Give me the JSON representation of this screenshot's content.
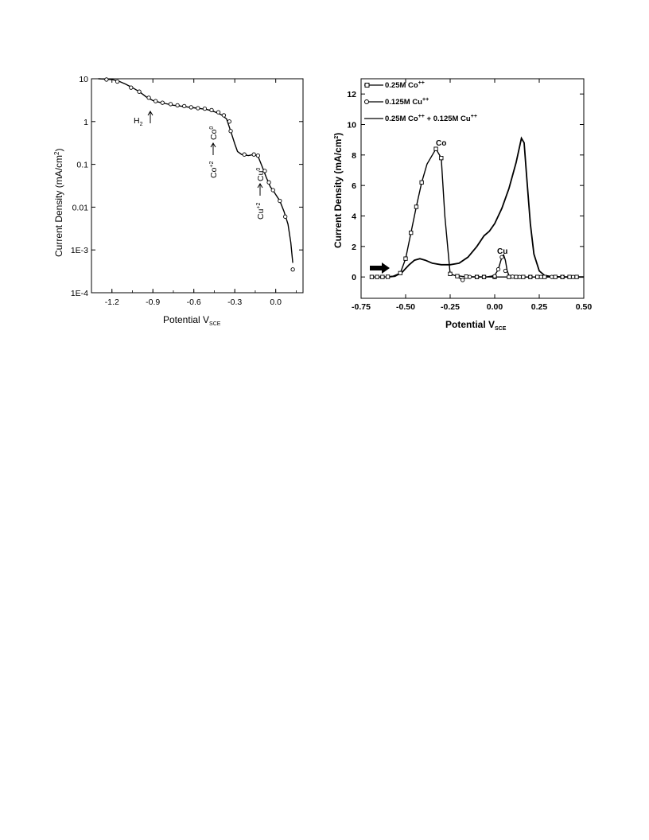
{
  "chart_data": [
    {
      "type": "line",
      "ylog": true,
      "xlabel": "Potential V",
      "xlabel_sub": "SCE",
      "ylabel_main": "Current Density (mA/cm",
      "ylabel_sup": "2",
      "ylabel_end": ")",
      "xlim": [
        -1.35,
        0.2
      ],
      "ylim": [
        0.0001,
        10
      ],
      "x_ticks": [
        {
          "value": -1.2,
          "label": "-1.2"
        },
        {
          "value": -0.9,
          "label": "-0.9"
        },
        {
          "value": -0.6,
          "label": "-0.6"
        },
        {
          "value": -0.3,
          "label": "-0.3"
        },
        {
          "value": 0.0,
          "label": "0.0"
        }
      ],
      "y_ticks": [
        {
          "value": 10,
          "label": "10"
        },
        {
          "value": 1,
          "label": "1"
        },
        {
          "value": 0.1,
          "label": "0.1"
        },
        {
          "value": 0.01,
          "label": "0.01"
        },
        {
          "value": 0.001,
          "label": "1E-3"
        },
        {
          "value": 0.0001,
          "label": "1E-4"
        }
      ],
      "series": [
        {
          "line": [
            [
              -1.3,
              10
            ],
            [
              -1.2,
              9.6
            ],
            [
              -1.15,
              8.8
            ],
            [
              -1.1,
              7.5
            ],
            [
              -1.05,
              6.2
            ],
            [
              -1.0,
              5.0
            ],
            [
              -0.95,
              3.8
            ],
            [
              -0.9,
              3.1
            ],
            [
              -0.85,
              2.8
            ],
            [
              -0.8,
              2.6
            ],
            [
              -0.75,
              2.4
            ],
            [
              -0.7,
              2.3
            ],
            [
              -0.65,
              2.2
            ],
            [
              -0.6,
              2.1
            ],
            [
              -0.55,
              2.0
            ],
            [
              -0.5,
              1.9
            ],
            [
              -0.45,
              1.7
            ],
            [
              -0.4,
              1.45
            ],
            [
              -0.36,
              1.15
            ],
            [
              -0.33,
              0.6
            ],
            [
              -0.3,
              0.3
            ],
            [
              -0.28,
              0.2
            ],
            [
              -0.25,
              0.17
            ],
            [
              -0.2,
              0.16
            ],
            [
              -0.16,
              0.17
            ],
            [
              -0.13,
              0.155
            ],
            [
              -0.1,
              0.09
            ],
            [
              -0.07,
              0.05
            ],
            [
              -0.04,
              0.03
            ],
            [
              -0.01,
              0.022
            ],
            [
              0.03,
              0.014
            ],
            [
              0.06,
              0.008
            ],
            [
              0.09,
              0.004
            ],
            [
              0.11,
              0.0015
            ],
            [
              0.125,
              0.0005
            ]
          ],
          "markers": [
            [
              -1.24,
              9.6
            ],
            [
              -1.16,
              8.6
            ],
            [
              -1.06,
              6.2
            ],
            [
              -1.0,
              5.0
            ],
            [
              -0.93,
              3.6
            ],
            [
              -0.88,
              3.0
            ],
            [
              -0.83,
              2.75
            ],
            [
              -0.77,
              2.55
            ],
            [
              -0.72,
              2.4
            ],
            [
              -0.67,
              2.3
            ],
            [
              -0.62,
              2.15
            ],
            [
              -0.57,
              2.05
            ],
            [
              -0.52,
              2.0
            ],
            [
              -0.47,
              1.85
            ],
            [
              -0.42,
              1.65
            ],
            [
              -0.38,
              1.4
            ],
            [
              -0.34,
              1.0
            ],
            [
              -0.33,
              0.6
            ],
            [
              -0.23,
              0.17
            ],
            [
              -0.16,
              0.17
            ],
            [
              -0.13,
              0.16
            ],
            [
              -0.08,
              0.07
            ],
            [
              -0.05,
              0.038
            ],
            [
              -0.02,
              0.025
            ],
            [
              0.03,
              0.014
            ],
            [
              0.07,
              0.006
            ],
            [
              0.125,
              0.00035
            ]
          ]
        }
      ],
      "annotations": {
        "h2_label": "H",
        "h2_sub": "2",
        "co_label": "Co",
        "co_sup": "+2",
        "co0_label": "Co",
        "co0_sup": "0",
        "cu_label": "Cu",
        "cu_sup": "+2",
        "cu0_label": "Cu",
        "cu0_sup": "0"
      }
    },
    {
      "type": "line",
      "xlabel": "Potential V",
      "xlabel_sub": "SCE",
      "ylabel_main": "Current Density (mA/cm",
      "ylabel_sup": "2",
      "ylabel_end": ")",
      "xlim": [
        -0.75,
        0.5
      ],
      "ylim": [
        -1.4,
        13.0
      ],
      "x_ticks": [
        {
          "value": -0.75,
          "label": "-0.75"
        },
        {
          "value": -0.5,
          "label": "-0.50"
        },
        {
          "value": -0.25,
          "label": "-0.25"
        },
        {
          "value": 0.0,
          "label": "0.00"
        },
        {
          "value": 0.25,
          "label": "0.25"
        },
        {
          "value": 0.5,
          "label": "0.50"
        }
      ],
      "y_ticks": [
        {
          "value": 0,
          "label": "0"
        },
        {
          "value": 2,
          "label": "2"
        },
        {
          "value": 4,
          "label": "4"
        },
        {
          "value": 6,
          "label": "6"
        },
        {
          "value": 8,
          "label": "8"
        },
        {
          "value": 10,
          "label": "10"
        },
        {
          "value": 12,
          "label": "12"
        }
      ],
      "legend_position": "top-left",
      "series": [
        {
          "name_main": "0.25M Co",
          "name_sup": "++",
          "marker": "square",
          "points": [
            [
              -0.69,
              0.0
            ],
            [
              -0.66,
              0.0
            ],
            [
              -0.63,
              0.0
            ],
            [
              -0.6,
              0.01
            ],
            [
              -0.57,
              0.05
            ],
            [
              -0.53,
              0.25
            ],
            [
              -0.5,
              1.2
            ],
            [
              -0.47,
              2.9
            ],
            [
              -0.44,
              4.6
            ],
            [
              -0.41,
              6.2
            ],
            [
              -0.38,
              7.4
            ],
            [
              -0.33,
              8.4
            ],
            [
              -0.3,
              7.8
            ],
            [
              -0.28,
              4.0
            ],
            [
              -0.25,
              0.2
            ],
            [
              -0.22,
              0.08
            ],
            [
              -0.19,
              0.05
            ],
            [
              -0.17,
              0.02
            ],
            [
              -0.14,
              0.02
            ],
            [
              -0.11,
              0.01
            ],
            [
              -0.08,
              0.01
            ],
            [
              -0.05,
              0.0
            ],
            [
              -0.02,
              0.0
            ],
            [
              0.01,
              0.0
            ],
            [
              0.04,
              0.0
            ],
            [
              0.07,
              0.0
            ],
            [
              0.1,
              0.0
            ],
            [
              0.13,
              0.0
            ],
            [
              0.16,
              0.0
            ],
            [
              0.19,
              0.0
            ],
            [
              0.22,
              0.0
            ],
            [
              0.25,
              0.0
            ],
            [
              0.28,
              0.0
            ],
            [
              0.31,
              0.0
            ],
            [
              0.34,
              0.0
            ],
            [
              0.37,
              0.0
            ],
            [
              0.4,
              0.0
            ],
            [
              0.43,
              0.0
            ],
            [
              0.46,
              0.0
            ]
          ],
          "marked": [
            [
              -0.69,
              0.0
            ],
            [
              -0.66,
              0.0
            ],
            [
              -0.63,
              0.0
            ],
            [
              -0.6,
              0.01
            ],
            [
              -0.53,
              0.25
            ],
            [
              -0.5,
              1.2
            ],
            [
              -0.47,
              2.9
            ],
            [
              -0.44,
              4.6
            ],
            [
              -0.41,
              6.2
            ],
            [
              -0.33,
              8.4
            ],
            [
              -0.3,
              7.8
            ],
            [
              -0.25,
              0.2
            ],
            [
              -0.21,
              0.05
            ],
            [
              -0.16,
              0.02
            ],
            [
              -0.1,
              0.0
            ],
            [
              -0.06,
              0.0
            ],
            [
              0.0,
              0.0
            ],
            [
              0.08,
              0.0
            ],
            [
              0.12,
              0.0
            ],
            [
              0.16,
              0.0
            ],
            [
              0.2,
              0.0
            ],
            [
              0.24,
              0.0
            ],
            [
              0.28,
              0.0
            ],
            [
              0.34,
              0.0
            ],
            [
              0.38,
              0.0
            ],
            [
              0.42,
              0.0
            ],
            [
              0.46,
              0.0
            ]
          ]
        },
        {
          "name_main": "0.125M Cu",
          "name_sup": "++",
          "marker": "circle",
          "points": [
            [
              -0.22,
              0.0
            ],
            [
              -0.2,
              -0.05
            ],
            [
              -0.18,
              -0.2
            ],
            [
              -0.16,
              0.0
            ],
            [
              -0.1,
              0.0
            ],
            [
              -0.05,
              0.0
            ],
            [
              -0.02,
              0.05
            ],
            [
              0.0,
              0.1
            ],
            [
              0.02,
              0.5
            ],
            [
              0.04,
              1.3
            ],
            [
              0.05,
              1.45
            ],
            [
              0.06,
              1.1
            ],
            [
              0.07,
              0.4
            ],
            [
              0.08,
              0.1
            ],
            [
              0.1,
              0.02
            ],
            [
              0.14,
              0.0
            ],
            [
              0.2,
              0.0
            ],
            [
              0.3,
              0.0
            ],
            [
              0.45,
              0.0
            ]
          ],
          "marked": [
            [
              -0.18,
              -0.2
            ],
            [
              -0.14,
              0.0
            ],
            [
              -0.1,
              0.0
            ],
            [
              -0.06,
              0.0
            ],
            [
              0.0,
              0.05
            ],
            [
              0.02,
              0.5
            ],
            [
              0.04,
              1.3
            ],
            [
              0.06,
              0.4
            ],
            [
              0.1,
              0.02
            ],
            [
              0.14,
              0.0
            ],
            [
              0.2,
              0.0
            ],
            [
              0.26,
              0.0
            ],
            [
              0.32,
              0.0
            ],
            [
              0.38,
              0.0
            ],
            [
              0.44,
              0.0
            ]
          ]
        },
        {
          "name_main": "0.25M Co",
          "name_sup": "++",
          "name_mid": " + 0.125M Cu",
          "name_sup2": "++",
          "marker": "none",
          "points": [
            [
              -0.6,
              0.0
            ],
            [
              -0.56,
              0.05
            ],
            [
              -0.52,
              0.3
            ],
            [
              -0.48,
              0.8
            ],
            [
              -0.45,
              1.1
            ],
            [
              -0.42,
              1.2
            ],
            [
              -0.39,
              1.1
            ],
            [
              -0.35,
              0.9
            ],
            [
              -0.3,
              0.8
            ],
            [
              -0.25,
              0.8
            ],
            [
              -0.2,
              0.9
            ],
            [
              -0.15,
              1.3
            ],
            [
              -0.1,
              2.0
            ],
            [
              -0.06,
              2.7
            ],
            [
              -0.03,
              3.0
            ],
            [
              0.0,
              3.5
            ],
            [
              0.04,
              4.5
            ],
            [
              0.08,
              5.8
            ],
            [
              0.12,
              7.5
            ],
            [
              0.15,
              9.1
            ],
            [
              0.165,
              8.8
            ],
            [
              0.18,
              6.5
            ],
            [
              0.2,
              3.5
            ],
            [
              0.22,
              1.5
            ],
            [
              0.25,
              0.4
            ],
            [
              0.28,
              0.1
            ],
            [
              0.32,
              0.02
            ],
            [
              0.4,
              0.0
            ],
            [
              0.5,
              0.0
            ]
          ]
        }
      ],
      "annotations": {
        "co_peak": "Co",
        "cu_peak": "Cu"
      }
    }
  ]
}
